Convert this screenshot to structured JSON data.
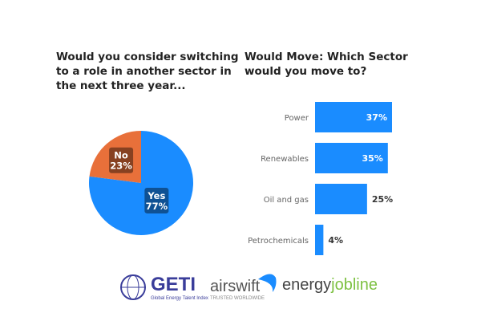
{
  "chart_data": [
    {
      "type": "pie",
      "title": "Would you consider switching to a role in another sector in the next three year...",
      "slices": [
        {
          "label": "Yes",
          "value": 77,
          "display": "77%",
          "color": "#1a8cff"
        },
        {
          "label": "No",
          "value": 23,
          "display": "23%",
          "color": "#e8703a"
        }
      ]
    },
    {
      "type": "bar",
      "orientation": "horizontal",
      "title": "Would Move: Which Sector would you move to?",
      "categories": [
        "Power",
        "Renewables",
        "Oil and gas",
        "Petrochemicals"
      ],
      "values": [
        37,
        35,
        25,
        4
      ],
      "labels": [
        "37%",
        "35%",
        "25%",
        "4%"
      ],
      "color": "#1a8cff",
      "xlim": [
        0,
        40
      ]
    }
  ],
  "logos": {
    "geti": "GETI",
    "geti_sub": "Global Energy Talent Index",
    "airswift": "airswift",
    "airswift_sub": "TRUSTED WORLDWIDE",
    "ejl_a": "energy",
    "ejl_b": "jobline"
  }
}
